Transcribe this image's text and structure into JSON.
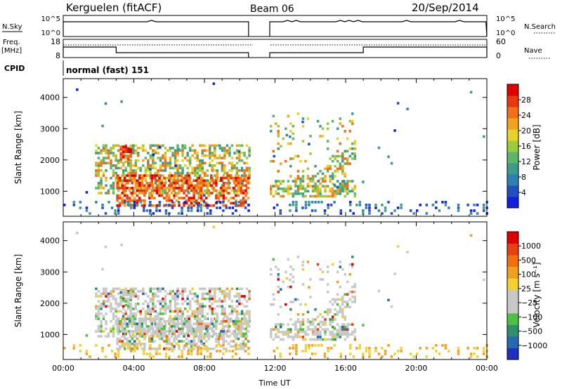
{
  "header": {
    "site": "Kerguelen (fitACF)",
    "beam": "Beam 06",
    "date": "20/Sep/2014"
  },
  "sky_panel": {
    "left_label": "N.Sky",
    "right_label": "N.Search",
    "left_ticks": [
      "10^5",
      "10^0"
    ],
    "right_ticks": [
      "10^5",
      "10^0"
    ]
  },
  "freq_panel": {
    "left_label_1": "Freq.",
    "left_label_2": "[MHz]",
    "right_label": "Nave",
    "left_ticks": [
      "18",
      "8"
    ],
    "right_ticks": [
      "60",
      "0"
    ]
  },
  "cpid": {
    "label": "CPID",
    "value": "normal (fast) 151"
  },
  "chart_data": [
    {
      "type": "heatmap",
      "name": "power",
      "ylabel": "Slant Range [km]",
      "ylim": [
        200,
        4600
      ],
      "yticks": [
        "1000",
        "2000",
        "3000",
        "4000"
      ],
      "xlim": [
        0,
        24
      ],
      "colorbar": {
        "label": "Power [dB]",
        "ticks": [
          "4",
          "8",
          "12",
          "16",
          "20",
          "24",
          "28"
        ],
        "colors": [
          "#1020e0",
          "#2050c0",
          "#2f7fb0",
          "#3e9a8a",
          "#5cb56a",
          "#9acc3a",
          "#e6d22a",
          "#f2a21e",
          "#f0701a",
          "#e8380f",
          "#e00000"
        ]
      },
      "echo_regions": [
        {
          "t0": 1.8,
          "t1": 10.5,
          "r0": 900,
          "r1": 2500,
          "level": "mid"
        },
        {
          "t0": 3.0,
          "t1": 10.5,
          "r0": 500,
          "r1": 1500,
          "level": "high"
        },
        {
          "t0": 3.2,
          "t1": 3.9,
          "r0": 1900,
          "r1": 2400,
          "level": "high"
        },
        {
          "t0": 11.7,
          "t1": 16.5,
          "r0": 800,
          "r1": 3500,
          "level": "mid"
        }
      ],
      "data_gap": [
        10.5,
        11.7
      ]
    },
    {
      "type": "heatmap",
      "name": "velocity",
      "ylabel": "Slant Range [km]",
      "ylim": [
        200,
        4600
      ],
      "yticks": [
        "1000",
        "2000",
        "3000",
        "4000"
      ],
      "xlim": [
        0,
        24
      ],
      "xticks": [
        "00:00",
        "04:00",
        "08:00",
        "12:00",
        "16:00",
        "20:00",
        "00:00"
      ],
      "xlabel": "Time UT",
      "colorbar": {
        "label": "Velocity [m s⁻¹]",
        "ticks": [
          "1000",
          "500",
          "100",
          "25",
          "−25",
          "−100",
          "−500",
          "−1000"
        ],
        "colors": [
          "#2030c0",
          "#2868b0",
          "#2f8f6f",
          "#4fc040",
          "#c8c8c8",
          "#c8c8c8",
          "#f2d030",
          "#f0a020",
          "#f07010",
          "#e84010",
          "#e00000"
        ]
      },
      "data_gap": [
        10.5,
        11.7
      ]
    }
  ]
}
